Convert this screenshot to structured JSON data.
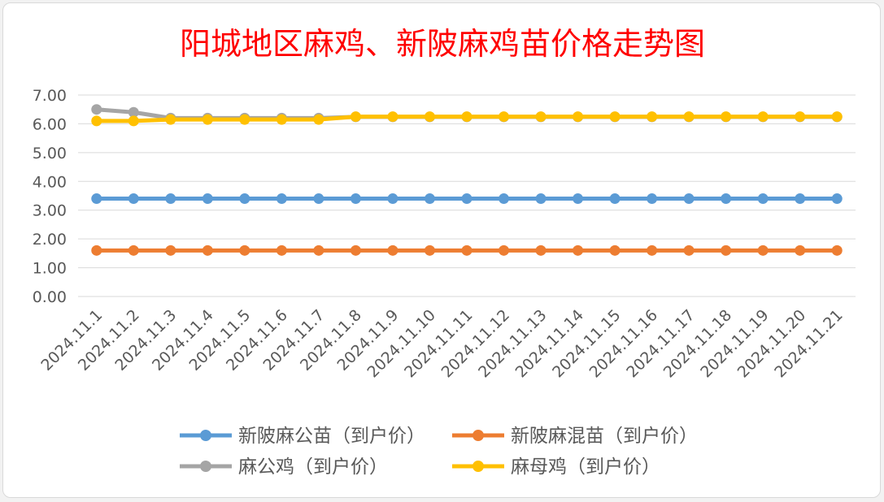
{
  "chart_data": {
    "type": "line",
    "title": "阳城地区麻鸡、新陂麻鸡苗价格走势图",
    "title_color": "#ff0000",
    "xlabel": "",
    "ylabel": "",
    "categories": [
      "2024.11.1",
      "2024.11.2",
      "2024.11.3",
      "2024.11.4",
      "2024.11.5",
      "2024.11.6",
      "2024.11.7",
      "2024.11.8",
      "2024.11.9",
      "2024.11.10",
      "2024.11.11",
      "2024.11.12",
      "2024.11.13",
      "2024.11.14",
      "2024.11.15",
      "2024.11.16",
      "2024.11.17",
      "2024.11.18",
      "2024.11.19",
      "2024.11.20",
      "2024.11.21"
    ],
    "y_ticks": [
      "0.00",
      "1.00",
      "2.00",
      "3.00",
      "4.00",
      "5.00",
      "6.00",
      "7.00"
    ],
    "ylim": [
      0,
      7
    ],
    "grid": true,
    "legend_position": "bottom",
    "series": [
      {
        "name": "新陂麻公苗（到户价）",
        "color": "#5b9bd5",
        "values": [
          3.4,
          3.4,
          3.4,
          3.4,
          3.4,
          3.4,
          3.4,
          3.4,
          3.4,
          3.4,
          3.4,
          3.4,
          3.4,
          3.4,
          3.4,
          3.4,
          3.4,
          3.4,
          3.4,
          3.4,
          3.4
        ]
      },
      {
        "name": "新陂麻混苗（到户价）",
        "color": "#ed7d31",
        "values": [
          1.6,
          1.6,
          1.6,
          1.6,
          1.6,
          1.6,
          1.6,
          1.6,
          1.6,
          1.6,
          1.6,
          1.6,
          1.6,
          1.6,
          1.6,
          1.6,
          1.6,
          1.6,
          1.6,
          1.6,
          1.6
        ]
      },
      {
        "name": "麻公鸡（到户价）",
        "color": "#a5a5a5",
        "values": [
          6.5,
          6.4,
          6.2,
          6.2,
          6.2,
          6.2,
          6.2,
          6.24,
          6.24,
          6.24,
          6.24,
          6.24,
          6.24,
          6.24,
          6.24,
          6.24,
          6.24,
          6.24,
          6.24,
          6.24,
          6.24
        ]
      },
      {
        "name": "麻母鸡（到户价）",
        "color": "#ffc000",
        "values": [
          6.1,
          6.1,
          6.15,
          6.15,
          6.15,
          6.15,
          6.15,
          6.25,
          6.25,
          6.25,
          6.25,
          6.25,
          6.25,
          6.25,
          6.25,
          6.25,
          6.25,
          6.25,
          6.25,
          6.25,
          6.25
        ]
      }
    ]
  }
}
